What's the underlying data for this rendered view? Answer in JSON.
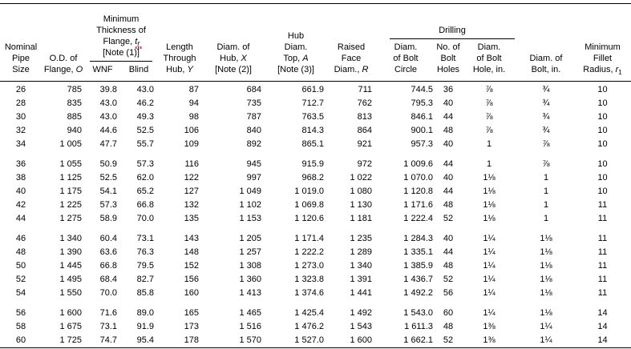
{
  "colors": {
    "text": "#000000",
    "background": "#ffffff",
    "rules": "#000000",
    "spellcheck_squiggle": "#e02020"
  },
  "header": {
    "nominal_pipe_size": [
      "Nominal",
      "Pipe",
      "Size"
    ],
    "od_flange": [
      "O.D. of",
      "Flange, *O*"
    ],
    "thickness_group": {
      "label": [
        "Minimum",
        "Thickness of",
        "Flange, *t*~*f*~",
        "[Note (1)%]%"
      ],
      "wnf": [
        "WNF"
      ],
      "blind": [
        "Blind"
      ]
    },
    "length_through_hub": [
      "Length",
      "Through",
      "Hub, *Y*"
    ],
    "diam_of_hub": [
      "Diam. of",
      "Hub, *X*",
      "[Note (2)]"
    ],
    "hub_diam_top": [
      "Hub",
      "Diam.",
      "Top, *A*",
      "[Note (3)]"
    ],
    "raised_face": [
      "Raised",
      "Face",
      "Diam., *R*"
    ],
    "drilling_group": {
      "label": [
        "Drilling"
      ],
      "bolt_circle": [
        "Diam.",
        "of Bolt",
        "Circle"
      ],
      "bolt_holes": [
        "No. of",
        "Bolt",
        "Holes"
      ],
      "bolt_hole": [
        "Diam.",
        "of Bolt",
        "Hole, in."
      ]
    },
    "diam_of_bolt": [
      "Diam. of",
      "Bolt, in."
    ],
    "fillet_radius": [
      "Minimum",
      "Fillet",
      "Radius, *r*~1~"
    ]
  },
  "table": {
    "column_ids": [
      "nominal_pipe_size",
      "od_flange",
      "wnf",
      "blind",
      "length_through_hub",
      "diam_of_hub",
      "hub_diam_top",
      "raised_face",
      "bolt_circle",
      "bolt_holes",
      "bolt_hole_in",
      "bolt_in",
      "fillet_radius"
    ],
    "row_groups": [
      [
        [
          "26",
          "785",
          "39.8",
          "43.0",
          "87",
          "684",
          "661.9",
          "711",
          "744.5",
          "36",
          "⅞",
          "¾",
          "10"
        ],
        [
          "28",
          "835",
          "43.0",
          "46.2",
          "94",
          "735",
          "712.7",
          "762",
          "795.3",
          "40",
          "⅞",
          "¾",
          "10"
        ],
        [
          "30",
          "885",
          "43.0",
          "49.3",
          "98",
          "787",
          "763.5",
          "813",
          "846.1",
          "44",
          "⅞",
          "¾",
          "10"
        ],
        [
          "32",
          "940",
          "44.6",
          "52.5",
          "106",
          "840",
          "814.3",
          "864",
          "900.1",
          "48",
          "⅞",
          "¾",
          "10"
        ],
        [
          "34",
          "1 005",
          "47.7",
          "55.7",
          "109",
          "892",
          "865.1",
          "921",
          "957.3",
          "40",
          "1",
          "⅞",
          "10"
        ]
      ],
      [
        [
          "36",
          "1 055",
          "50.9",
          "57.3",
          "116",
          "945",
          "915.9",
          "972",
          "1 009.6",
          "44",
          "1",
          "⅞",
          "10"
        ],
        [
          "38",
          "1 125",
          "52.5",
          "62.0",
          "122",
          "997",
          "968.2",
          "1 022",
          "1 070.0",
          "40",
          "1⅛",
          "1",
          "10"
        ],
        [
          "40",
          "1 175",
          "54.1",
          "65.2",
          "127",
          "1 049",
          "1 019.0",
          "1 080",
          "1 120.8",
          "44",
          "1⅛",
          "1",
          "10"
        ],
        [
          "42",
          "1 225",
          "57.3",
          "66.8",
          "132",
          "1 102",
          "1 069.8",
          "1 130",
          "1 171.6",
          "48",
          "1⅛",
          "1",
          "11"
        ],
        [
          "44",
          "1 275",
          "58.9",
          "70.0",
          "135",
          "1 153",
          "1 120.6",
          "1 181",
          "1 222.4",
          "52",
          "1⅛",
          "1",
          "11"
        ]
      ],
      [
        [
          "46",
          "1 340",
          "60.4",
          "73.1",
          "143",
          "1 205",
          "1 171.4",
          "1 235",
          "1 284.3",
          "40",
          "1¼",
          "1⅛",
          "11"
        ],
        [
          "48",
          "1 390",
          "63.6",
          "76.3",
          "148",
          "1 257",
          "1 222.2",
          "1 289",
          "1 335.1",
          "44",
          "1¼",
          "1⅛",
          "11"
        ],
        [
          "50",
          "1 445",
          "66.8",
          "79.5",
          "152",
          "1 308",
          "1 273.0",
          "1 340",
          "1 385.9",
          "48",
          "1¼",
          "1⅛",
          "11"
        ],
        [
          "52",
          "1 495",
          "68.4",
          "82.7",
          "156",
          "1 360",
          "1 323.8",
          "1 391",
          "1 436.7",
          "52",
          "1¼",
          "1⅛",
          "11"
        ],
        [
          "54",
          "1 550",
          "70.0",
          "85.8",
          "160",
          "1 413",
          "1 374.6",
          "1 441",
          "1 492.2",
          "56",
          "1¼",
          "1⅛",
          "11"
        ]
      ],
      [
        [
          "56",
          "1 600",
          "71.6",
          "89.0",
          "165",
          "1 465",
          "1 425.4",
          "1 492",
          "1 543.0",
          "60",
          "1¼",
          "1⅛",
          "14"
        ],
        [
          "58",
          "1 675",
          "73.1",
          "91.9",
          "173",
          "1 516",
          "1 476.2",
          "1 543",
          "1 611.3",
          "48",
          "1⅜",
          "1¼",
          "14"
        ],
        [
          "60",
          "1 725",
          "74.7",
          "95.4",
          "178",
          "1 570",
          "1 527.0",
          "1 600",
          "1 662.1",
          "52",
          "1⅜",
          "1¼",
          "14"
        ]
      ]
    ]
  }
}
